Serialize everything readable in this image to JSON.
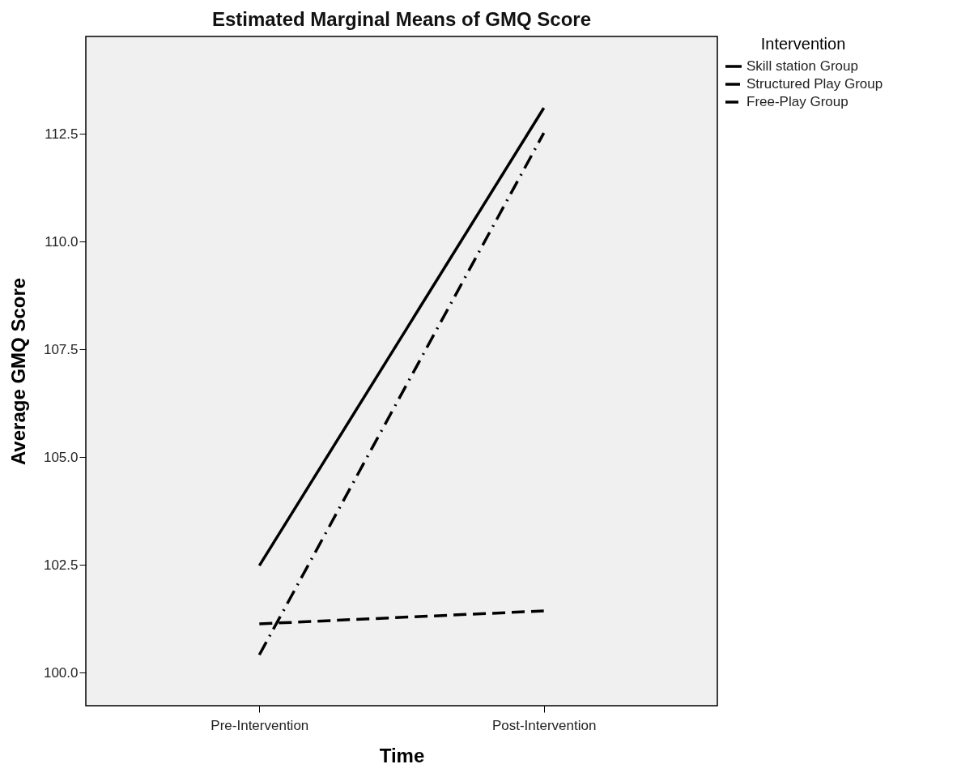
{
  "chart_data": {
    "type": "line",
    "title": "Estimated Marginal Means of GMQ Score",
    "xlabel": "Time",
    "ylabel": "Average GMQ Score",
    "legend_title": "Intervention",
    "categories": [
      "Pre-Intervention",
      "Post-Intervention"
    ],
    "series": [
      {
        "name": "Skill station Group",
        "color": "#000000",
        "line_style": "solid",
        "values": [
          102.48,
          113.1
        ]
      },
      {
        "name": "Structured Play Group",
        "color": "#000000",
        "line_style": "dashdot",
        "values": [
          100.41,
          112.52
        ]
      },
      {
        "name": "Free-Play Group",
        "color": "#000000",
        "line_style": "dashed",
        "values": [
          101.13,
          101.43
        ]
      }
    ],
    "ylim": [
      99.23,
      114.76
    ],
    "yticks": [
      {
        "value": 100,
        "label": "100.0"
      },
      {
        "value": 102.5,
        "label": "102.5"
      },
      {
        "value": 105,
        "label": "105.0"
      },
      {
        "value": 107.5,
        "label": "107.5"
      },
      {
        "value": 110,
        "label": "110.0"
      },
      {
        "value": 112.5,
        "label": "112.5"
      }
    ],
    "grid": false,
    "legend": "right",
    "marker": "none"
  }
}
